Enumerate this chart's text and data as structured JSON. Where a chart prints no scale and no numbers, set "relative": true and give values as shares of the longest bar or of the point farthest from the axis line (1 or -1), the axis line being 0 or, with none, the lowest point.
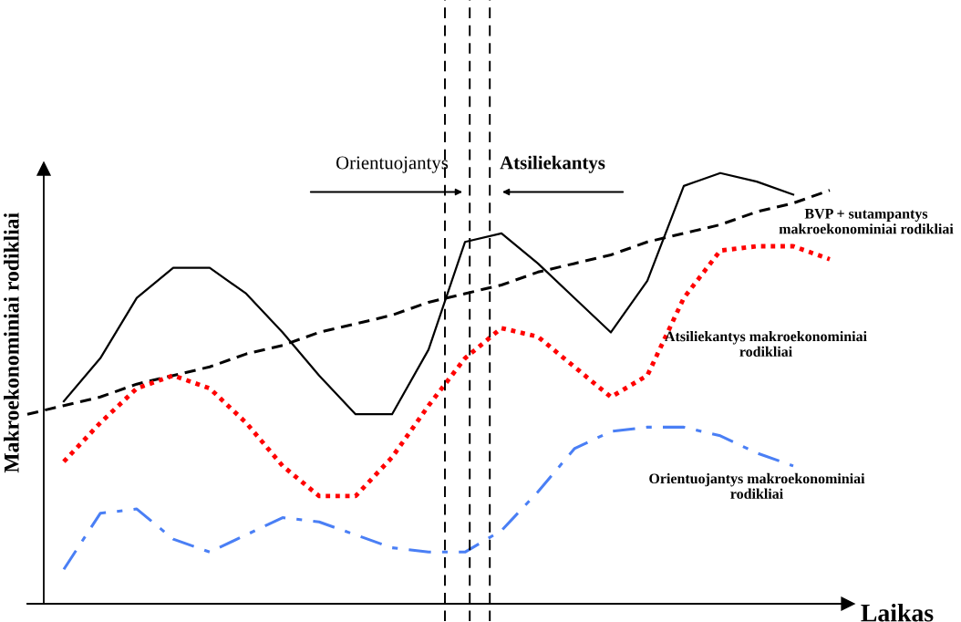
{
  "chart_data": {
    "type": "line",
    "relative": true,
    "xlabel": "Laikas",
    "ylabel": "Makroekonominiai rodikliai",
    "legend": false,
    "categories": [
      null,
      null,
      null,
      null,
      null,
      null,
      null,
      null,
      null,
      null,
      null,
      null,
      null,
      null,
      null,
      null,
      null,
      null,
      null,
      null,
      null,
      null,
      null
    ],
    "series": [
      {
        "name": "BVP + sutampantys\nmakroekonominiai rodikliai",
        "color": "#000000",
        "line_style": "solid",
        "values": [
          null,
          0.47,
          0.57,
          0.71,
          0.78,
          0.78,
          0.72,
          0.63,
          0.53,
          0.44,
          0.44,
          0.59,
          0.84,
          0.86,
          0.79,
          0.71,
          0.63,
          0.75,
          0.97,
          1.0,
          0.98,
          0.95,
          null
        ]
      },
      {
        "color": "#000000",
        "line_style": "dashed",
        "values": [
          0.44,
          0.46,
          0.48,
          0.51,
          0.53,
          0.55,
          0.58,
          0.6,
          0.63,
          0.65,
          0.67,
          0.7,
          0.72,
          0.74,
          0.77,
          0.79,
          0.81,
          0.84,
          0.86,
          0.88,
          0.91,
          0.93,
          0.96
        ]
      },
      {
        "name": "Atsiliekantys makroekonominiai\nrodikliai",
        "color": "#ff0000",
        "line_style": "dotted",
        "values": [
          null,
          0.33,
          0.42,
          0.5,
          0.53,
          0.5,
          0.42,
          0.32,
          0.25,
          0.25,
          0.34,
          0.46,
          0.57,
          0.64,
          0.62,
          0.55,
          0.48,
          0.53,
          0.71,
          0.82,
          0.83,
          0.83,
          0.8
        ]
      },
      {
        "name": "Orientuojantys makroekonominiai\nrodikliai",
        "color": "#4a7ff5",
        "line_style": "dashdot",
        "values": [
          null,
          0.08,
          0.21,
          0.22,
          0.15,
          0.12,
          0.16,
          0.2,
          0.19,
          0.16,
          0.13,
          0.12,
          0.12,
          0.17,
          0.26,
          0.36,
          0.4,
          0.41,
          0.41,
          0.39,
          0.35,
          0.32,
          null
        ]
      }
    ],
    "annotations": [
      "Orientuojantys",
      "Atsiliekantys"
    ]
  }
}
